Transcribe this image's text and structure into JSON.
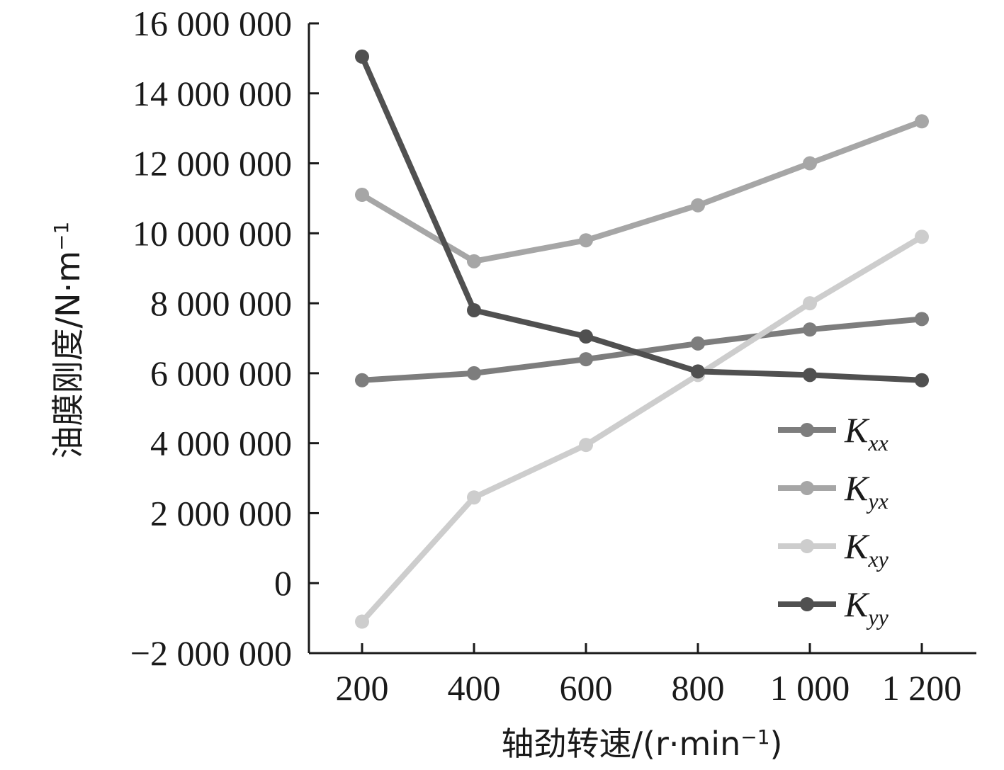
{
  "chart_data": {
    "type": "line",
    "title": "",
    "xlabel": "轴劲转速/(r·min",
    "xlabel_sup": "−1",
    "xlabel_tail": ")",
    "ylabel": "油膜刚度/N·m",
    "ylabel_sup": "−1",
    "x": [
      200,
      400,
      600,
      800,
      1000,
      1200
    ],
    "x_tick_labels": [
      "200",
      "400",
      "600",
      "800",
      "1 000",
      "1 200"
    ],
    "y_ticks": [
      -2000000,
      0,
      2000000,
      4000000,
      6000000,
      8000000,
      10000000,
      12000000,
      14000000,
      16000000
    ],
    "y_tick_labels": [
      "−2 000 000",
      "0",
      "2 000 000",
      "4 000 000",
      "6 000 000",
      "8 000 000",
      "10 000 000",
      "12 000 000",
      "14 000 000",
      "16 000 000"
    ],
    "ylim": [
      -2000000,
      16000000
    ],
    "grid": false,
    "legend_position": "bottom-right",
    "series": [
      {
        "name": "K",
        "sub": "xx",
        "color": "#7d7d7d",
        "values": [
          5800000,
          6000000,
          6400000,
          6850000,
          7250000,
          7550000
        ]
      },
      {
        "name": "K",
        "sub": "yx",
        "color": "#a6a6a6",
        "values": [
          11100000,
          9200000,
          9800000,
          10800000,
          12000000,
          13200000
        ]
      },
      {
        "name": "K",
        "sub": "xy",
        "color": "#cdcdcd",
        "values": [
          -1100000,
          2450000,
          3950000,
          5950000,
          8000000,
          9900000
        ]
      },
      {
        "name": "K",
        "sub": "yy",
        "color": "#505050",
        "values": [
          15050000,
          7800000,
          7050000,
          6050000,
          5950000,
          5800000
        ]
      }
    ]
  }
}
